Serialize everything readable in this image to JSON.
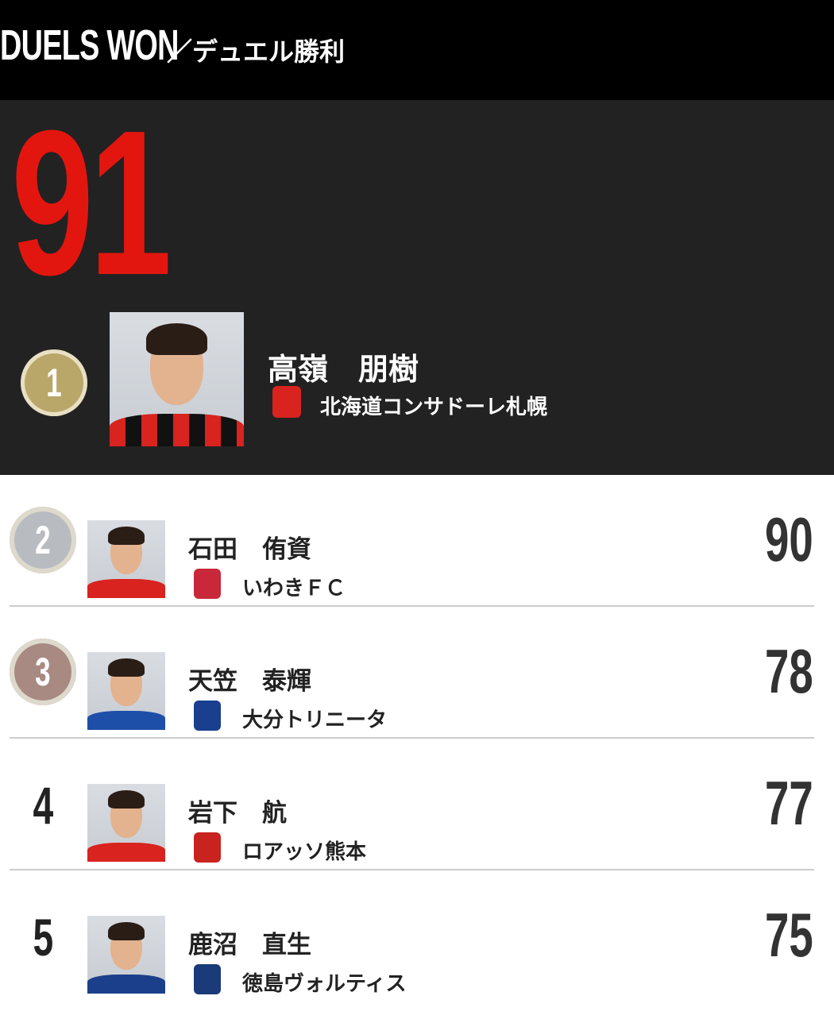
{
  "header": {
    "title_en": "DUELS WON",
    "title_jp": "／デュエル勝利"
  },
  "leader": {
    "rank": "1",
    "value": "91",
    "name": "高嶺　朋樹",
    "club": "北海道コンサドーレ札幌",
    "club_color": "#d8231f",
    "value_color": "#e2160f",
    "medal_color": "#b9a76a"
  },
  "rows": [
    {
      "rank": "2",
      "name": "石田　侑資",
      "club": "いわきＦＣ",
      "value": "90",
      "medal_color": "#b8bcc0",
      "club_color": "#c8283a",
      "shirt": "#d8231f"
    },
    {
      "rank": "3",
      "name": "天笠　泰輝",
      "club": "大分トリニータ",
      "value": "78",
      "medal_color": "#a88a82",
      "club_color": "#1a3f8f",
      "shirt": "#1e4fa8"
    },
    {
      "rank": "4",
      "name": "岩下　航",
      "club": "ロアッソ熊本",
      "value": "77",
      "club_color": "#c8231f",
      "shirt": "#d8231f"
    },
    {
      "rank": "5",
      "name": "鹿沼　直生",
      "club": "徳島ヴォルティス",
      "value": "75",
      "club_color": "#1a3a7a",
      "shirt": "#1b3f8a"
    }
  ]
}
